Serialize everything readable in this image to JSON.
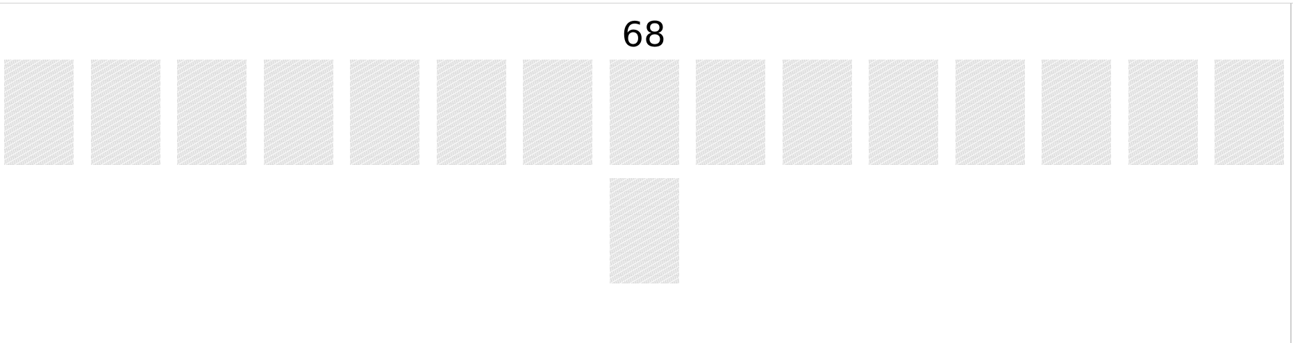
{
  "score": "68",
  "cards": {
    "row1_count": 15,
    "row2_count": 1,
    "face": "face-down",
    "back_color": "#ececec"
  }
}
